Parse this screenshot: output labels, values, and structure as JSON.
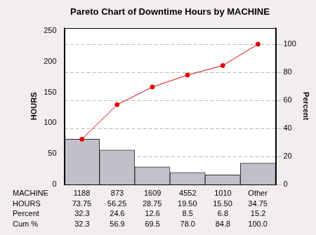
{
  "chart_data": {
    "type": "bar",
    "title": "Pareto Chart of Downtime Hours by MACHINE",
    "xlabel": "MACHINE",
    "ylabel": "HOURS",
    "y2label": "Percent",
    "categories": [
      "1188",
      "873",
      "1609",
      "4552",
      "1010",
      "Other"
    ],
    "series": [
      {
        "name": "HOURS",
        "type": "bar",
        "color": "#c0c0c8",
        "values": [
          73.75,
          56.25,
          28.75,
          19.5,
          15.5,
          34.75
        ],
        "value_labels": [
          "73.75",
          "56.25",
          "28.75",
          "19.50",
          "15.50",
          "34.75"
        ]
      },
      {
        "name": "Cum %",
        "type": "line",
        "axis": "y2",
        "color": "#e00000",
        "marker": "circle",
        "values": [
          32.3,
          56.9,
          69.5,
          78,
          84.8,
          100
        ],
        "value_labels": [
          "32.3",
          "56.9",
          "69.5",
          "78.0",
          "84.8",
          "100.0"
        ]
      }
    ],
    "table_rows": [
      {
        "label": "Percent",
        "values": [
          32.3,
          24.6,
          12.6,
          8.5,
          6.8,
          15.2
        ]
      }
    ],
    "ylim": [
      0,
      255
    ],
    "yticks": [
      0,
      50,
      100,
      150,
      200,
      250
    ],
    "y2lim": [
      0,
      111.72
    ],
    "y2ticks": [
      0,
      20,
      40,
      60,
      80,
      100
    ],
    "grid": true
  }
}
